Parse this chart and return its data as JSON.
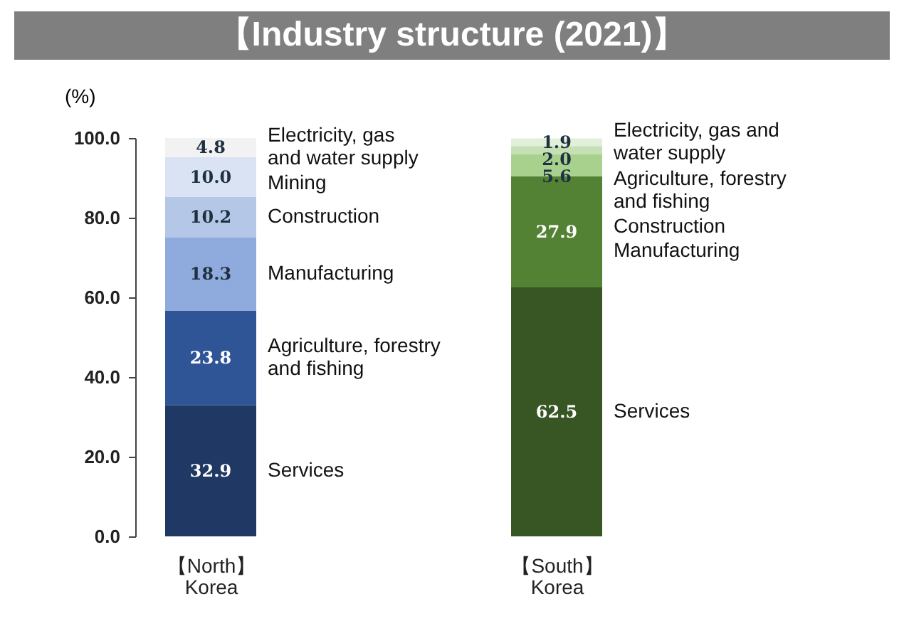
{
  "chart_data": [
    {
      "type": "bar",
      "stacked": true,
      "title": "【Industry structure (2021)】",
      "ylabel": "(%)",
      "categories": [
        "【North】\nKorea"
      ],
      "series": [
        {
          "name": "Services",
          "color": "#1f3864",
          "values": [
            32.9
          ],
          "value_labels": [
            "32.9"
          ]
        },
        {
          "name": "Agriculture, forestry\nand fishing",
          "color": "#2f5597",
          "values": [
            23.8
          ],
          "value_labels": [
            "23.8"
          ]
        },
        {
          "name": "Manufacturing",
          "color": "#8faadc",
          "values": [
            18.3
          ],
          "value_labels": [
            "18.3"
          ]
        },
        {
          "name": "Construction",
          "color": "#b4c7e7",
          "values": [
            10.2
          ],
          "value_labels": [
            "10.2"
          ]
        },
        {
          "name": "Mining",
          "color": "#dae3f3",
          "values": [
            10.0
          ],
          "value_labels": [
            "10.0"
          ]
        },
        {
          "name": "Electricity, gas\nand water supply",
          "color": "#f2f2f2",
          "values": [
            4.8
          ],
          "value_labels": [
            "4.8"
          ]
        }
      ],
      "ylim": [
        0,
        100
      ],
      "yticks": [
        {
          "value": 0,
          "label": "0.0"
        },
        {
          "value": 20,
          "label": "20.0"
        },
        {
          "value": 40,
          "label": "40.0"
        },
        {
          "value": 60,
          "label": "60.0"
        },
        {
          "value": 80,
          "label": "80.0"
        },
        {
          "value": 100,
          "label": "100.0"
        }
      ]
    },
    {
      "type": "bar",
      "stacked": true,
      "categories": [
        "【South】\nKorea"
      ],
      "series": [
        {
          "name": "Services",
          "color": "#375623",
          "values": [
            62.5
          ],
          "value_labels": [
            "62.5"
          ]
        },
        {
          "name": "Manufacturing",
          "color": "#548235",
          "values": [
            27.9
          ],
          "value_labels": [
            "27.9"
          ]
        },
        {
          "name": "Construction",
          "color": "#a9d18e",
          "values": [
            5.6
          ],
          "value_labels": [
            "5.6"
          ]
        },
        {
          "name": "Agriculture, forestry\nand fishing",
          "color": "#c5e0b4",
          "values": [
            2.0
          ],
          "value_labels": [
            "2.0"
          ]
        },
        {
          "name": "Electricity, gas and\nwater supply",
          "color": "#e2f0d9",
          "values": [
            1.9
          ],
          "value_labels": [
            "1.9"
          ]
        }
      ],
      "ylim": [
        0,
        100
      ],
      "tick_labels": "x"
    }
  ]
}
